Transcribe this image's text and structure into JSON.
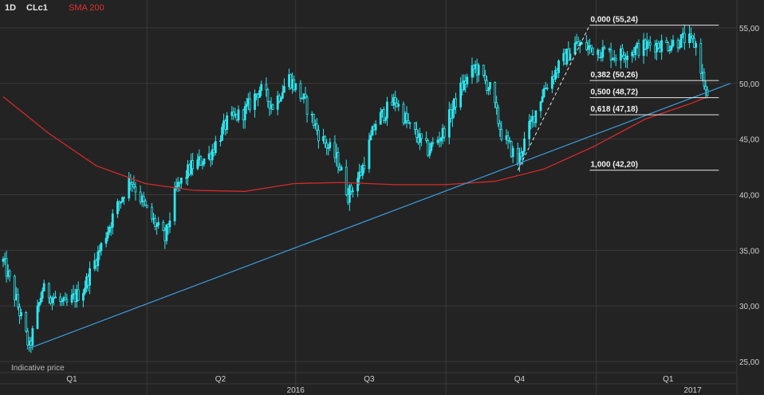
{
  "header": {
    "timeframe": "1D",
    "symbol": "CLc1",
    "indicator": "SMA 200"
  },
  "note": "Indicative price",
  "colors": {
    "background": "#232323",
    "grid": "#3a3a3a",
    "price": "#2fe6ef",
    "sma": "#d42a2a",
    "trendline": "#3a9fe0",
    "fib": "#e8e8e8",
    "text": "#d0d0d0"
  },
  "chart_data": {
    "type": "candlestick",
    "y_axis": {
      "ylim": [
        24.0,
        57.5
      ],
      "ticks": [
        "25,00",
        "30,00",
        "35,00",
        "40,00",
        "45,00",
        "50,00",
        "55,00"
      ],
      "tick_values": [
        25,
        30,
        35,
        40,
        45,
        50,
        55
      ],
      "side": "right"
    },
    "x_axis": {
      "quarter_labels": [
        "Q1",
        "Q2",
        "Q3",
        "Q4",
        "Q1"
      ],
      "year_labels": [
        "2016",
        "2017"
      ],
      "range": [
        "2016-01-04",
        "2017-03-10"
      ]
    },
    "grid": true,
    "price_path": [
      [
        "2016-01-04",
        34.0
      ],
      [
        "2016-01-12",
        30.5
      ],
      [
        "2016-01-20",
        26.2
      ],
      [
        "2016-01-28",
        31.5
      ],
      [
        "2016-02-11",
        30.0
      ],
      [
        "2016-02-22",
        31.5
      ],
      [
        "2016-03-03",
        35.0
      ],
      [
        "2016-03-11",
        38.0
      ],
      [
        "2016-03-22",
        41.5
      ],
      [
        "2016-04-01",
        38.5
      ],
      [
        "2016-04-12",
        36.0
      ],
      [
        "2016-04-19",
        40.5
      ],
      [
        "2016-04-28",
        42.5
      ],
      [
        "2016-05-09",
        43.5
      ],
      [
        "2016-05-20",
        46.5
      ],
      [
        "2016-05-31",
        47.5
      ],
      [
        "2016-06-09",
        49.5
      ],
      [
        "2016-06-17",
        48.0
      ],
      [
        "2016-06-27",
        50.5
      ],
      [
        "2016-07-06",
        48.5
      ],
      [
        "2016-07-15",
        45.5
      ],
      [
        "2016-07-27",
        43.0
      ],
      [
        "2016-08-02",
        40.0
      ],
      [
        "2016-08-10",
        42.0
      ],
      [
        "2016-08-19",
        46.5
      ],
      [
        "2016-08-31",
        48.5
      ],
      [
        "2016-09-09",
        46.0
      ],
      [
        "2016-09-20",
        44.0
      ],
      [
        "2016-09-29",
        45.5
      ],
      [
        "2016-10-10",
        49.5
      ],
      [
        "2016-10-19",
        51.5
      ],
      [
        "2016-10-28",
        49.5
      ],
      [
        "2016-11-04",
        45.5
      ],
      [
        "2016-11-14",
        43.0
      ],
      [
        "2016-11-21",
        46.0
      ],
      [
        "2016-11-30",
        49.5
      ],
      [
        "2016-12-09",
        51.5
      ],
      [
        "2016-12-19",
        53.5
      ],
      [
        "2017-01-03",
        53.0
      ],
      [
        "2017-01-13",
        52.5
      ],
      [
        "2017-01-24",
        53.0
      ],
      [
        "2017-02-03",
        53.5
      ],
      [
        "2017-02-14",
        53.5
      ],
      [
        "2017-02-24",
        54.0
      ],
      [
        "2017-03-03",
        53.5
      ],
      [
        "2017-03-08",
        50.0
      ],
      [
        "2017-03-10",
        48.5
      ]
    ],
    "sma_200": [
      [
        "2016-01-04",
        48.8
      ],
      [
        "2016-02-01",
        45.5
      ],
      [
        "2016-03-01",
        42.6
      ],
      [
        "2016-03-31",
        41.0
      ],
      [
        "2016-04-29",
        40.4
      ],
      [
        "2016-05-31",
        40.3
      ],
      [
        "2016-06-30",
        41.0
      ],
      [
        "2016-07-29",
        41.1
      ],
      [
        "2016-08-31",
        40.9
      ],
      [
        "2016-09-30",
        40.9
      ],
      [
        "2016-10-31",
        41.2
      ],
      [
        "2016-11-30",
        42.3
      ],
      [
        "2016-12-30",
        44.3
      ],
      [
        "2017-01-31",
        46.8
      ],
      [
        "2017-02-28",
        48.2
      ],
      [
        "2017-03-10",
        48.8
      ]
    ],
    "trendline": {
      "from": [
        "2016-01-20",
        26.2
      ],
      "to": [
        "2017-03-24",
        50.0
      ]
    },
    "fib_swing": {
      "from": [
        "2016-11-14",
        42.2
      ],
      "to": [
        "2016-12-28",
        55.24
      ]
    },
    "fib_levels": [
      {
        "ratio": "0,000",
        "value": 55.24,
        "label": "0,000 (55,24)"
      },
      {
        "ratio": "0,382",
        "value": 50.26,
        "label": "0,382 (50,26)"
      },
      {
        "ratio": "0,500",
        "value": 48.72,
        "label": "0,500 (48,72)"
      },
      {
        "ratio": "0,618",
        "value": 47.18,
        "label": "0,618 (47,18)"
      },
      {
        "ratio": "1,000",
        "value": 42.2,
        "label": "1,000 (42,20)"
      }
    ],
    "fib_range": [
      "2016-12-28",
      "2017-03-17"
    ]
  }
}
